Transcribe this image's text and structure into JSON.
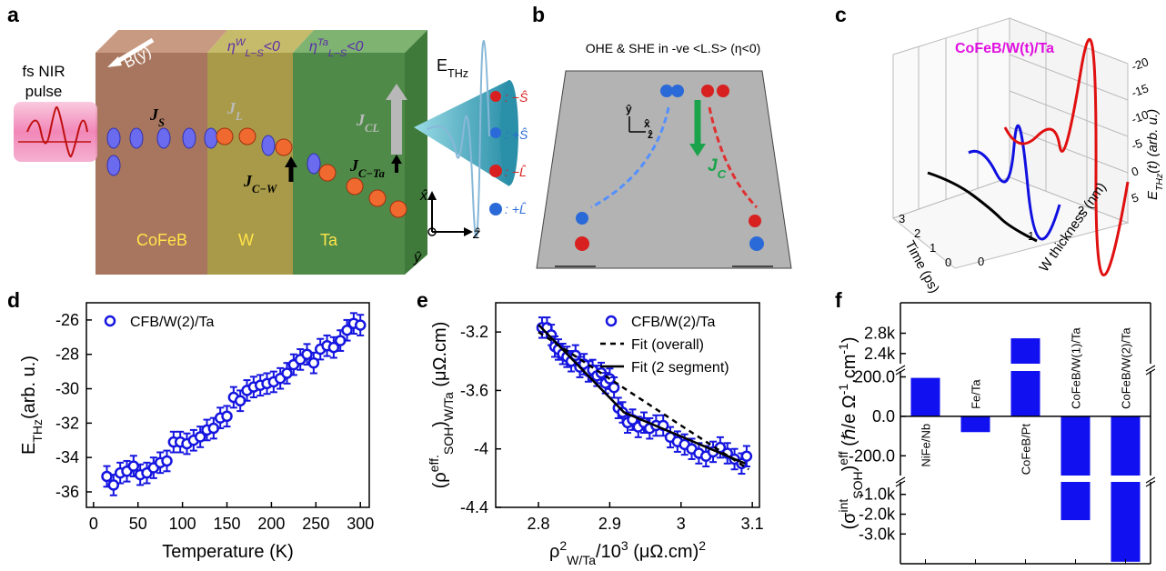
{
  "panel_labels": [
    "a",
    "b",
    "c",
    "d",
    "e",
    "f"
  ],
  "diagram_a": {
    "pulse": [
      "fs NIR",
      "pulse"
    ],
    "field": "B(ŷ)",
    "eta_w": [
      {
        "text": "η"
      },
      {
        "sup": "W"
      },
      {
        "sub": "L−S"
      },
      {
        "text": "<0"
      }
    ],
    "eta_ta": [
      {
        "text": "η"
      },
      {
        "sup": "Ta"
      },
      {
        "sub": "L−S"
      },
      {
        "text": "<0"
      }
    ],
    "e_thz": [
      {
        "text": "E"
      },
      {
        "sub": "THz"
      }
    ],
    "j_s": [
      {
        "text": "J"
      },
      {
        "sub": "S"
      }
    ],
    "j_l": [
      {
        "text": "J"
      },
      {
        "sub": "L"
      }
    ],
    "j_cl": [
      {
        "text": "J"
      },
      {
        "sub": "CL"
      }
    ],
    "j_cw": [
      {
        "text": "J"
      },
      {
        "sub": "C−W"
      }
    ],
    "j_cta": [
      {
        "text": "J"
      },
      {
        "sub": "C−Ta"
      }
    ],
    "layers": [
      "CoFeB",
      "W",
      "Ta"
    ],
    "axes": [
      "x̂",
      "ŷ",
      "ẑ"
    ]
  },
  "diagram_b": {
    "title": "OHE & SHE in -ve <L.S> (η<0)",
    "legend": [
      ": −Ŝ",
      ": +Ŝ",
      ": −L̂",
      ": +L̂"
    ],
    "current": [
      {
        "text": "J"
      },
      {
        "sub": "C"
      }
    ],
    "axes": [
      "ŷ",
      "x̂",
      "ẑ"
    ]
  },
  "diagram_c": {
    "title": "CoFeB/W(t)/Ta",
    "z_label": [
      {
        "text": "E"
      },
      {
        "sub": "THz"
      },
      {
        "text": "(t) (arb. u.)"
      }
    ],
    "time_label": "Time (ps)",
    "thickness_label": "W thickness (nm)",
    "z_ticks": [
      "-20",
      "-15",
      "-10",
      "-5",
      "0",
      "5"
    ],
    "time_ticks": [
      "3",
      "2",
      "1",
      "0"
    ],
    "thickness_ticks": [
      "0",
      "1",
      "2"
    ]
  },
  "chart_data": [
    {
      "type": "scatter",
      "x_label": "Temperature (K)",
      "y_label": [
        {
          "text": "E"
        },
        {
          "sub": "THz"
        },
        {
          "text": "(arb. u.)"
        }
      ],
      "xlim": [
        -8,
        310
      ],
      "ylim": [
        -36.9,
        -25.0
      ],
      "xticks": [
        0,
        50,
        100,
        150,
        200,
        250,
        300
      ],
      "yticks": [
        -36,
        -34,
        -32,
        -30,
        -28,
        -26
      ],
      "legend": "upper left",
      "series": [
        {
          "name": "CFB/W(2)/Ta",
          "color": "#1515e0",
          "marker": "circle",
          "x": [
            15,
            22.5,
            30,
            37.5,
            45,
            52.5,
            60,
            67.5,
            75,
            82.5,
            90,
            97.5,
            105,
            112.5,
            120,
            127.5,
            135,
            142.5,
            150,
            157.5,
            165,
            172.5,
            180,
            187.5,
            195,
            202.5,
            210,
            217.5,
            225,
            232.5,
            240,
            247.5,
            255,
            262.5,
            270,
            277.5,
            285,
            292.5,
            300
          ],
          "values": [
            -35.1,
            -35.6,
            -34.9,
            -34.8,
            -34.5,
            -35.0,
            -34.9,
            -34.6,
            -34.3,
            -34.2,
            -33.1,
            -33.1,
            -33.2,
            -33.0,
            -32.8,
            -32.4,
            -32.3,
            -31.7,
            -31.6,
            -30.5,
            -30.7,
            -30.1,
            -29.9,
            -29.8,
            -29.7,
            -29.6,
            -29.4,
            -29.1,
            -28.6,
            -28.3,
            -28.0,
            -28.5,
            -27.7,
            -27.5,
            -27.6,
            -27.2,
            -26.6,
            -26.2,
            -26.3
          ],
          "errors": [
            0.6,
            0.6,
            0.6,
            0.6,
            0.6,
            0.6,
            0.6,
            0.6,
            0.6,
            0.6,
            0.6,
            0.6,
            0.6,
            0.6,
            0.6,
            0.6,
            0.6,
            0.6,
            0.6,
            0.6,
            0.6,
            0.6,
            0.6,
            0.6,
            0.6,
            0.6,
            0.6,
            0.6,
            0.6,
            0.6,
            0.6,
            0.6,
            0.6,
            0.6,
            0.6,
            0.6,
            0.6,
            0.6,
            0.6
          ]
        }
      ]
    },
    {
      "type": "scatter",
      "x_label": [
        {
          "text": "ρ"
        },
        {
          "sup": "2"
        },
        {
          "sub": "W/Ta"
        },
        {
          "text": "/10"
        },
        {
          "sup": "3"
        },
        {
          "text": " (μΩ.cm)"
        },
        {
          "sup": "2"
        }
      ],
      "y_label": [
        {
          "text": "(ρ"
        },
        {
          "sup": "eff."
        },
        {
          "sub": "SOH"
        },
        {
          "text": ")"
        },
        {
          "sub": "W/Ta"
        },
        {
          "text": " (μΩ.cm)"
        }
      ],
      "xlim": [
        2.74,
        3.11
      ],
      "ylim": [
        -4.4,
        -3.0
      ],
      "xticks": [
        2.8,
        2.9,
        3.0,
        3.1
      ],
      "yticks": [
        -3.2,
        -3.6,
        -4.0,
        -4.4
      ],
      "legend": "upper right",
      "series": [
        {
          "name": "CFB/W(2)/Ta",
          "color": "#1515e0",
          "marker": "circle",
          "x": [
            2.805,
            2.812,
            2.818,
            2.823,
            2.828,
            2.834,
            2.84,
            2.846,
            2.852,
            2.858,
            2.864,
            2.87,
            2.876,
            2.882,
            2.888,
            2.894,
            2.9,
            2.906,
            2.912,
            2.918,
            2.925,
            2.932,
            2.94,
            2.948,
            2.956,
            2.965,
            2.975,
            2.985,
            2.995,
            3.005,
            3.015,
            3.025,
            3.035,
            3.045,
            3.055,
            3.065,
            3.075,
            3.085,
            3.092
          ],
          "values": [
            -3.17,
            -3.17,
            -3.22,
            -3.3,
            -3.32,
            -3.35,
            -3.37,
            -3.4,
            -3.36,
            -3.44,
            -3.42,
            -3.47,
            -3.46,
            -3.5,
            -3.48,
            -3.55,
            -3.52,
            -3.58,
            -3.72,
            -3.75,
            -3.82,
            -3.8,
            -3.85,
            -3.82,
            -3.86,
            -3.84,
            -3.84,
            -3.92,
            -3.95,
            -3.97,
            -4.0,
            -4.03,
            -4.05,
            -4.02,
            -3.99,
            -4.03,
            -4.07,
            -4.1,
            -4.05
          ],
          "errors": [
            0.07,
            0.07,
            0.07,
            0.07,
            0.07,
            0.07,
            0.07,
            0.07,
            0.07,
            0.07,
            0.07,
            0.07,
            0.07,
            0.07,
            0.07,
            0.07,
            0.07,
            0.07,
            0.07,
            0.07,
            0.07,
            0.07,
            0.07,
            0.07,
            0.07,
            0.07,
            0.07,
            0.07,
            0.07,
            0.07,
            0.07,
            0.07,
            0.07,
            0.07,
            0.07,
            0.07,
            0.07,
            0.07,
            0.07
          ]
        },
        {
          "name": "Fit (overall)",
          "color": "#000000",
          "line_style": "dashed",
          "x": [
            2.8,
            2.9,
            3.0,
            3.095
          ],
          "values": [
            -3.2,
            -3.52,
            -3.84,
            -4.14
          ]
        },
        {
          "name": "Fit (2 segment)",
          "color": "#000000",
          "line_style": "solid",
          "x": [
            2.8,
            2.92,
            3.09
          ],
          "values": [
            -3.15,
            -3.75,
            -4.1
          ]
        }
      ]
    },
    {
      "type": "bar",
      "y_label": [
        {
          "text": "(σ"
        },
        {
          "sup": "int"
        },
        {
          "sub": "SOH"
        },
        {
          "text": ")"
        },
        {
          "sup": "eff"
        },
        {
          "text": " (ℏ/e Ω"
        },
        {
          "sup": "-1"
        },
        {
          "text": ".cm"
        },
        {
          "sup": "-1"
        },
        {
          "text": ")"
        }
      ],
      "categories": [
        "NiFe/Nb",
        "Fe/Ta",
        "CoFeB/Pt",
        "CoFeB/W(1)/Ta",
        "CoFeB/W(2)/Ta"
      ],
      "values": [
        195,
        -80,
        2700,
        -2300,
        -4400
      ],
      "color": "#1010f0",
      "ylim_segments": [
        [
          -4500,
          -370
        ],
        [
          -300,
          230
        ],
        [
          2200,
          3400
        ]
      ],
      "yticks": [
        {
          "value": 2800,
          "label": "2.8k"
        },
        {
          "value": 2400,
          "label": "2.4k"
        },
        {
          "value": 200,
          "label": "200.0"
        },
        {
          "value": 0,
          "label": "0.0"
        },
        {
          "value": -200,
          "label": "-200.0"
        },
        {
          "value": -1000,
          "label": "-1.0k"
        },
        {
          "value": -2000,
          "label": "-2.0k"
        },
        {
          "value": -3000,
          "label": "-3.0k"
        }
      ]
    }
  ]
}
